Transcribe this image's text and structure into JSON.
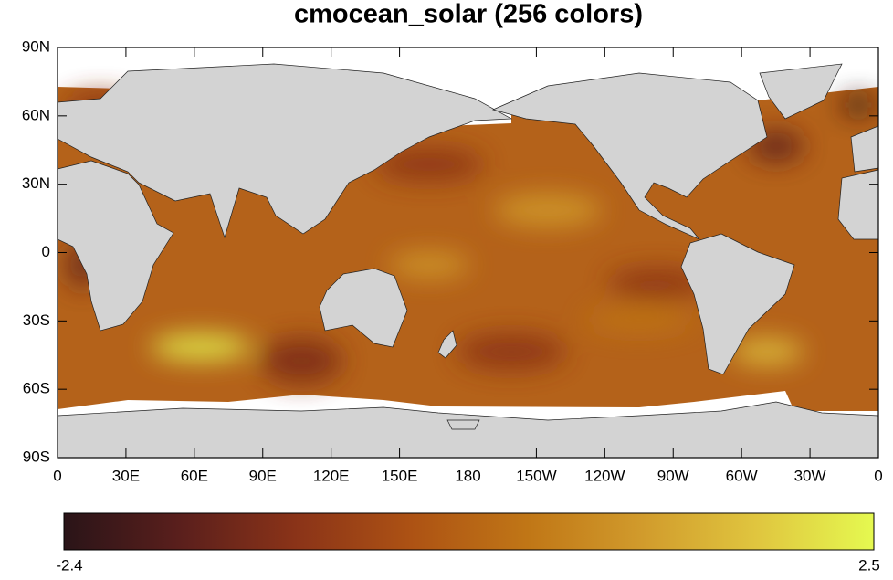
{
  "map": {
    "title": "cmocean_solar (256 colors)",
    "xlim": [
      0,
      360
    ],
    "ylim": [
      -90,
      90
    ],
    "yticks": [
      {
        "value": 90,
        "label": "90N"
      },
      {
        "value": 60,
        "label": "60N"
      },
      {
        "value": 30,
        "label": "30N"
      },
      0,
      {
        "value": -30,
        "label": "30S"
      },
      {
        "value": -60,
        "label": "60S"
      },
      {
        "value": -90,
        "label": "90S"
      }
    ],
    "xticks": [
      0,
      {
        "value": 30,
        "label": "30E"
      },
      {
        "value": 60,
        "label": "60E"
      },
      {
        "value": 90,
        "label": "90E"
      },
      {
        "value": 120,
        "label": "120E"
      },
      {
        "value": 150,
        "label": "150E"
      },
      180,
      {
        "value": 210,
        "label": "150W"
      },
      {
        "value": 240,
        "label": "120W"
      },
      {
        "value": 270,
        "label": "90W"
      },
      {
        "value": 300,
        "label": "60W"
      },
      {
        "value": 330,
        "label": "30W"
      },
      {
        "value": 360,
        "label": "0"
      }
    ],
    "colorbar": {
      "min": -2.4,
      "max": 2.5,
      "colors": [
        "#2a1418",
        "#5a1f1c",
        "#8a3318",
        "#ad5214",
        "#c07616",
        "#d19b2c",
        "#e0c63f",
        "#e5f950"
      ]
    }
  }
}
